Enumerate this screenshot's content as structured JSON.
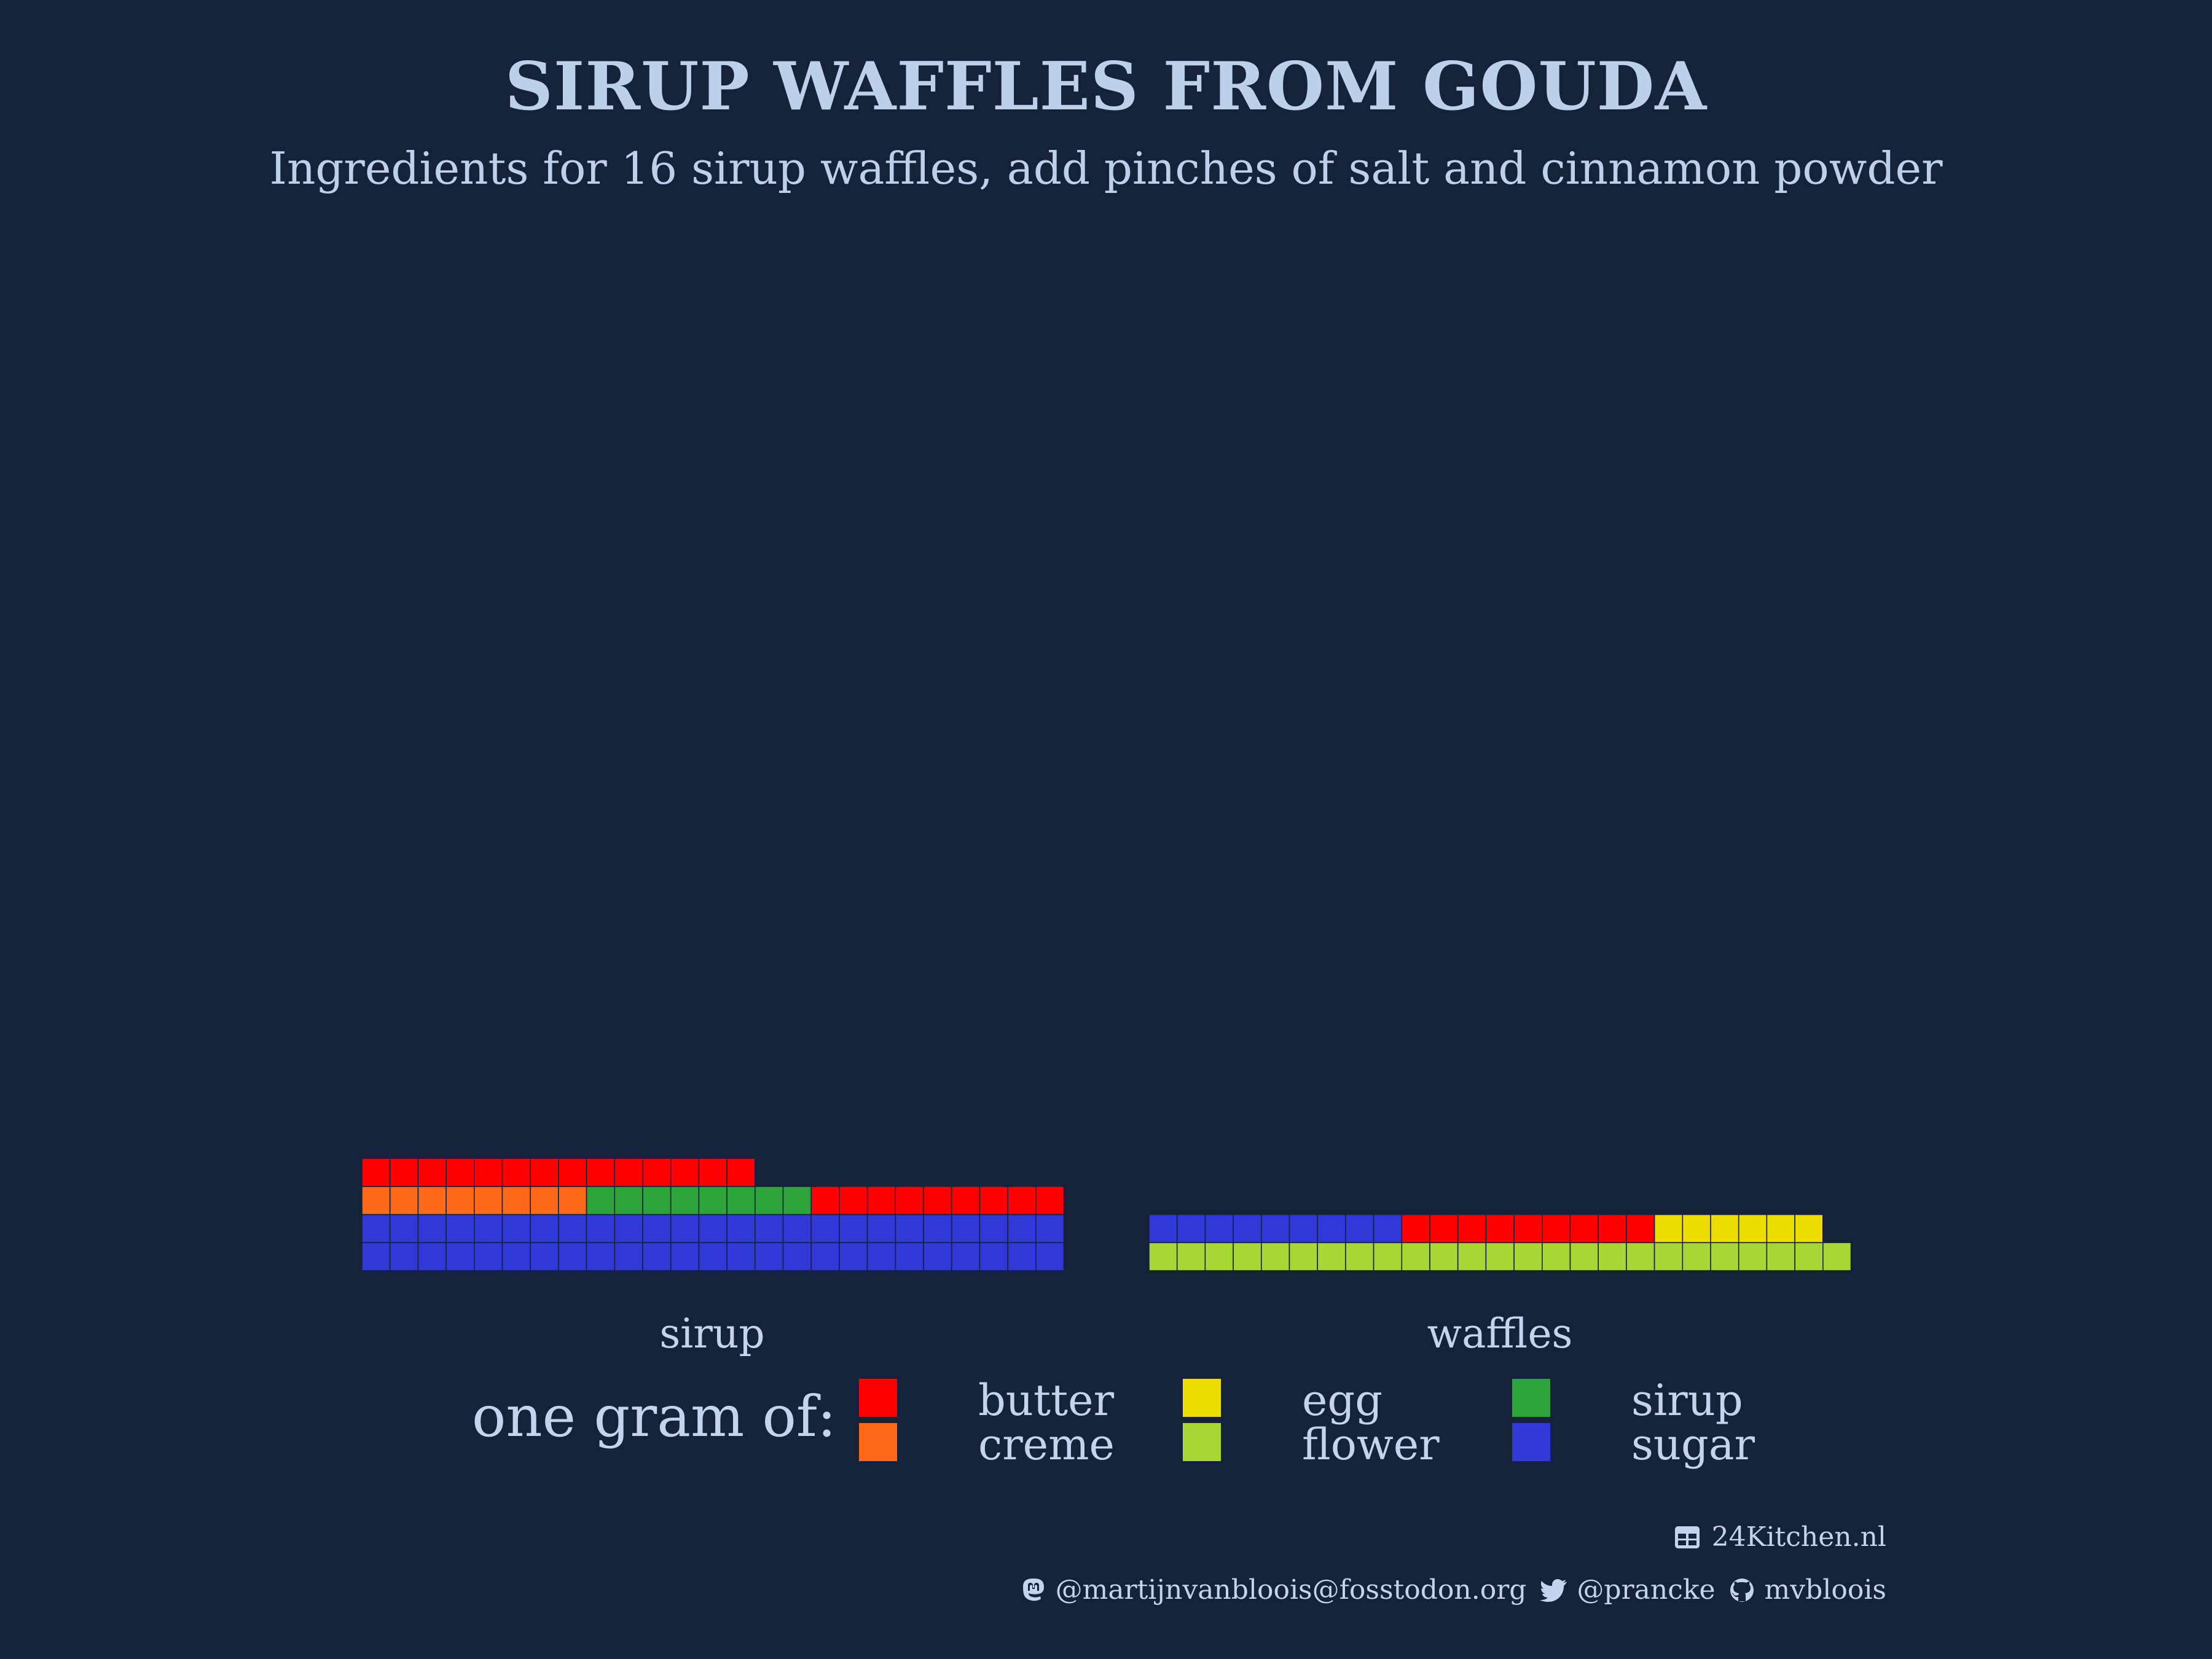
{
  "title": "SIRUP WAFFLES FROM GOUDA",
  "subtitle": "Ingredients for 16 sirup waffles, add pinches of salt and cinnamon powder",
  "chart_data": {
    "type": "waffle",
    "unit": "one gram",
    "columns_per_row": 25,
    "facets": [
      {
        "name": "sirup",
        "segments": [
          {
            "ingredient": "sugar",
            "grams": 500
          },
          {
            "ingredient": "creme",
            "grams": 75
          },
          {
            "ingredient": "sirup",
            "grams": 75
          },
          {
            "ingredient": "butter",
            "grams": 225
          }
        ]
      },
      {
        "name": "waffles",
        "segments": [
          {
            "ingredient": "flower",
            "grams": 250
          },
          {
            "ingredient": "sugar",
            "grams": 90
          },
          {
            "ingredient": "butter",
            "grams": 90
          },
          {
            "ingredient": "egg",
            "grams": 60
          }
        ]
      }
    ],
    "colors": {
      "butter": "#ff0000",
      "creme": "#fe6a1a",
      "egg": "#eedc00",
      "flower": "#a7d734",
      "sirup": "#2da33a",
      "sugar": "#3038d8"
    },
    "legend": {
      "title": "one gram of:",
      "items": [
        "butter",
        "creme",
        "egg",
        "flower",
        "sirup",
        "sugar"
      ],
      "position": "bottom"
    }
  },
  "caption": {
    "source": "24Kitchen.nl",
    "mastodon": "@martijnvanbloois@fosstodon.org",
    "twitter": "@prancke",
    "github": "mvbloois"
  },
  "icons": [
    "table-icon",
    "mastodon-icon",
    "twitter-icon",
    "github-icon"
  ]
}
